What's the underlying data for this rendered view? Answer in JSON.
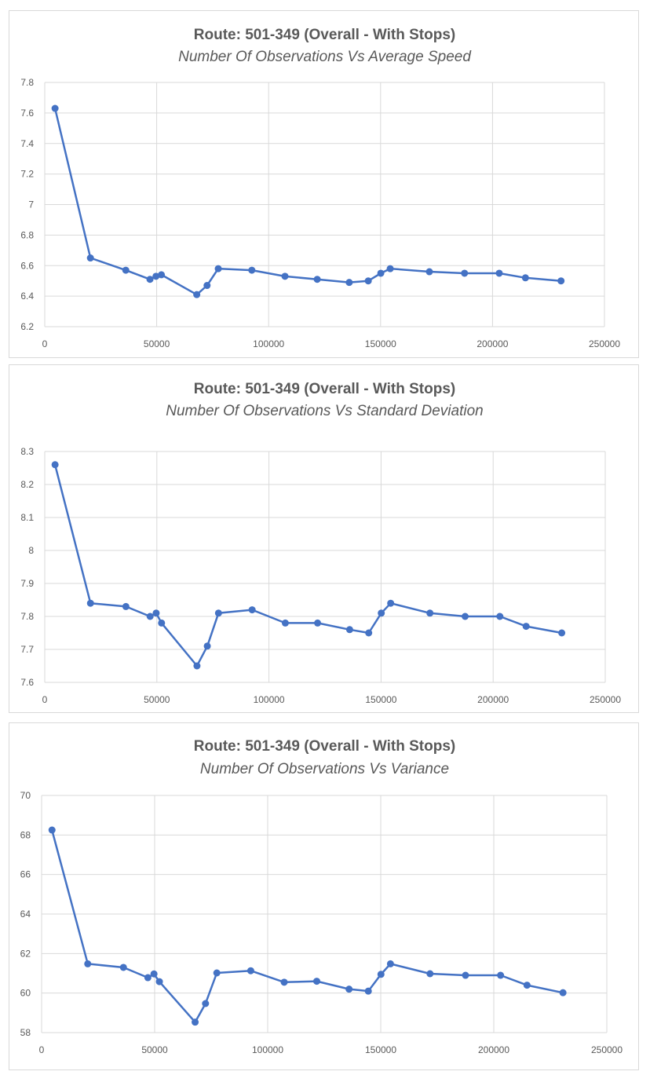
{
  "chart_data": [
    {
      "type": "line",
      "title": "Route: 501-349 (Overall - With Stops)",
      "subtitle": "Number Of Observations Vs Average Speed",
      "xlim": [
        0,
        250000
      ],
      "ylim": [
        6.2,
        7.8
      ],
      "x_ticks": [
        "0",
        "50000",
        "100000",
        "150000",
        "200000",
        "250000"
      ],
      "y_ticks": [
        "6.2",
        "6.4",
        "6.6",
        "6.8",
        "7",
        "7.2",
        "7.4",
        "7.6",
        "7.8"
      ],
      "grid": true,
      "legend": "none",
      "series": [
        {
          "color": "#4472c4",
          "x": [
            4600,
            20400,
            36200,
            47000,
            49700,
            52100,
            67900,
            72500,
            77500,
            92500,
            107300,
            121700,
            136000,
            144500,
            150100,
            154300,
            171800,
            187500,
            203000,
            214700,
            230600
          ],
          "y": [
            7.63,
            6.65,
            6.57,
            6.51,
            6.53,
            6.54,
            6.41,
            6.47,
            6.58,
            6.57,
            6.53,
            6.51,
            6.49,
            6.5,
            6.55,
            6.58,
            6.56,
            6.55,
            6.55,
            6.52,
            6.5
          ]
        }
      ]
    },
    {
      "type": "line",
      "title": "Route: 501-349 (Overall - With Stops)",
      "subtitle": "Number Of Observations Vs Standard Deviation",
      "xlim": [
        0,
        250000
      ],
      "ylim": [
        7.6,
        8.3
      ],
      "x_ticks": [
        "0",
        "50000",
        "100000",
        "150000",
        "200000",
        "250000"
      ],
      "y_ticks": [
        "7.6",
        "7.7",
        "7.8",
        "7.9",
        "8",
        "8.1",
        "8.2",
        "8.3"
      ],
      "grid": true,
      "legend": "none",
      "series": [
        {
          "color": "#4472c4",
          "x": [
            4600,
            20400,
            36200,
            47000,
            49700,
            52100,
            67900,
            72500,
            77500,
            92500,
            107300,
            121700,
            136000,
            144500,
            150100,
            154300,
            171800,
            187500,
            203000,
            214700,
            230600
          ],
          "y": [
            8.26,
            7.84,
            7.83,
            7.8,
            7.81,
            7.78,
            7.65,
            7.71,
            7.81,
            7.82,
            7.78,
            7.78,
            7.76,
            7.75,
            7.81,
            7.84,
            7.81,
            7.8,
            7.8,
            7.77,
            7.75
          ]
        }
      ]
    },
    {
      "type": "line",
      "title": "Route: 501-349 (Overall - With Stops)",
      "subtitle": "Number Of Observations Vs Variance",
      "xlim": [
        0,
        250000
      ],
      "ylim": [
        58,
        70
      ],
      "x_ticks": [
        "0",
        "50000",
        "100000",
        "150000",
        "200000",
        "250000"
      ],
      "y_ticks": [
        "58",
        "60",
        "62",
        "64",
        "66",
        "68",
        "70"
      ],
      "grid": true,
      "legend": "none",
      "series": [
        {
          "color": "#4472c4",
          "x": [
            4600,
            20400,
            36200,
            47000,
            49700,
            52100,
            67900,
            72500,
            77500,
            92500,
            107300,
            121700,
            136000,
            144500,
            150100,
            154300,
            171800,
            187500,
            203000,
            214700,
            230600
          ],
          "y": [
            68.25,
            61.48,
            61.3,
            60.78,
            60.97,
            60.58,
            58.53,
            59.47,
            61.02,
            61.13,
            60.55,
            60.6,
            60.2,
            60.1,
            60.95,
            61.48,
            60.98,
            60.9,
            60.9,
            60.4,
            60.02
          ]
        }
      ]
    }
  ]
}
